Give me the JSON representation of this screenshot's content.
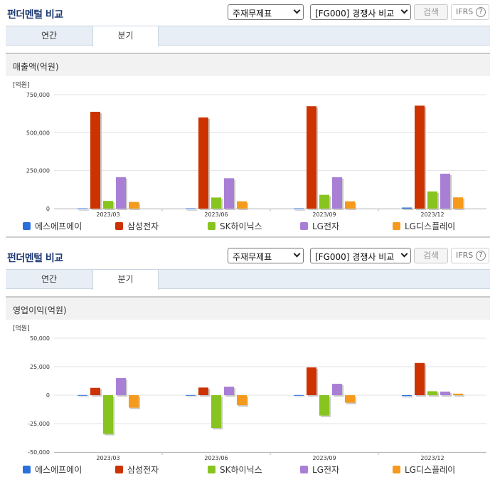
{
  "sections": [
    {
      "title": "펀더멘털 비교",
      "selects": {
        "statement": "주재무제표",
        "compare": "[FG000] 경쟁사 비교"
      },
      "search_label": "검색",
      "ifrs_label": "IFRS",
      "help_glyph": "?",
      "tabs": [
        {
          "label": "연간",
          "active": false
        },
        {
          "label": "분기",
          "active": true
        }
      ],
      "panel_title": "매출액(억원)"
    },
    {
      "title": "펀더멘털 비교",
      "selects": {
        "statement": "주재무제표",
        "compare": "[FG000] 경쟁사 비교"
      },
      "search_label": "검색",
      "ifrs_label": "IFRS",
      "help_glyph": "?",
      "tabs": [
        {
          "label": "연간",
          "active": false
        },
        {
          "label": "분기",
          "active": true
        }
      ],
      "panel_title": "영업이익(억원)"
    }
  ],
  "legend": [
    {
      "name": "에스에프에이",
      "color": "#2a6fdb"
    },
    {
      "name": "삼성전자",
      "color": "#cc3300"
    },
    {
      "name": "SK하이닉스",
      "color": "#88c41f"
    },
    {
      "name": "LG전자",
      "color": "#a97fd6"
    },
    {
      "name": "LG디스플레이",
      "color": "#f59a1d"
    }
  ],
  "chart_data": [
    {
      "type": "bar",
      "unit_label": "[억원]",
      "categories": [
        "2023/03",
        "2023/06",
        "2023/09",
        "2023/12"
      ],
      "ylim": [
        0,
        750000
      ],
      "yticks": [
        {
          "v": 0,
          "label": "0"
        },
        {
          "v": 250000,
          "label": "250,000"
        },
        {
          "v": 500000,
          "label": "500,000"
        },
        {
          "v": 750000,
          "label": "750,000"
        }
      ],
      "grid": true,
      "series": [
        {
          "name": "에스에프에이",
          "values": [
            1000,
            1100,
            1200,
            7000
          ]
        },
        {
          "name": "삼성전자",
          "values": [
            637454,
            600055,
            674047,
            677799
          ]
        },
        {
          "name": "SK하이닉스",
          "values": [
            50881,
            73059,
            90662,
            113055
          ]
        },
        {
          "name": "LG전자",
          "values": [
            207000,
            200000,
            207000,
            230000
          ]
        },
        {
          "name": "LG디스플레이",
          "values": [
            44000,
            48000,
            48000,
            74000
          ]
        }
      ]
    },
    {
      "type": "bar",
      "unit_label": "[억원]",
      "categories": [
        "2023/03",
        "2023/06",
        "2023/09",
        "2023/12"
      ],
      "ylim": [
        -50000,
        50000
      ],
      "yticks": [
        {
          "v": -50000,
          "label": "-50,000"
        },
        {
          "v": -25000,
          "label": "-25,000"
        },
        {
          "v": 0,
          "label": "0"
        },
        {
          "v": 25000,
          "label": "25,000"
        },
        {
          "v": 50000,
          "label": "50,000"
        }
      ],
      "grid": true,
      "series": [
        {
          "name": "에스에프에이",
          "values": [
            100,
            100,
            100,
            -800
          ]
        },
        {
          "name": "삼성전자",
          "values": [
            6402,
            6685,
            24336,
            28247
          ]
        },
        {
          "name": "SK하이닉스",
          "values": [
            -34023,
            -28821,
            -17920,
            3460
          ]
        },
        {
          "name": "LG전자",
          "values": [
            14974,
            7419,
            9967,
            3125
          ]
        },
        {
          "name": "LG디스플레이",
          "values": [
            -10984,
            -8815,
            -6621,
            1320
          ]
        }
      ]
    }
  ]
}
